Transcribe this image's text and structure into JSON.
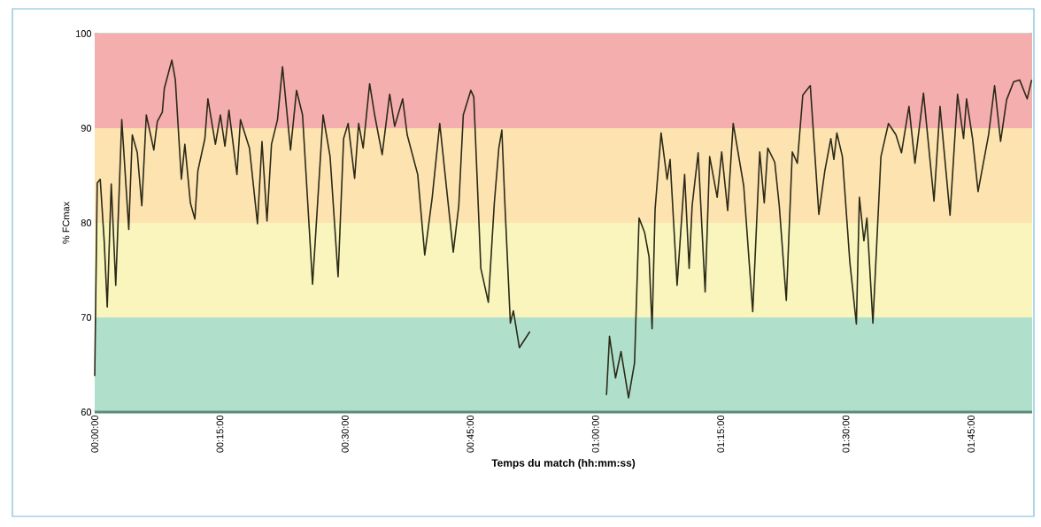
{
  "chart_data": {
    "type": "line",
    "xlabel": "Temps du match (hh:mm:ss)",
    "ylabel": "% FCmax",
    "xlim": [
      0,
      1.872
    ],
    "ylim": [
      60,
      100
    ],
    "xticks": [
      {
        "value": 0,
        "label": "00:00:00"
      },
      {
        "value": 0.25,
        "label": "00:15:00"
      },
      {
        "value": 0.5,
        "label": "00:30:00"
      },
      {
        "value": 0.75,
        "label": "00:45:00"
      },
      {
        "value": 1,
        "label": "01:00:00"
      },
      {
        "value": 1.25,
        "label": "01:15:00"
      },
      {
        "value": 1.5,
        "label": "01:30:00"
      },
      {
        "value": 1.75,
        "label": "01:45:00"
      }
    ],
    "yticks": [
      60,
      70,
      80,
      90,
      100
    ],
    "grid": "y",
    "marker": "none",
    "line_style": "solid",
    "bands": [
      {
        "axis": "y",
        "from": 60,
        "to": 70,
        "color": "#b0e0cc"
      },
      {
        "axis": "y",
        "from": 70,
        "to": 80,
        "color": "#f9f5bd"
      },
      {
        "axis": "y",
        "from": 80,
        "to": 90,
        "color": "#fde3b0"
      },
      {
        "axis": "y",
        "from": 90,
        "to": 100,
        "color": "#f5aeae"
      }
    ],
    "series": [
      {
        "color": "#2b2a18",
        "x": [
          0,
          0.005,
          0.011,
          0.019,
          0.025,
          0.033,
          0.042,
          0.054,
          0.068,
          0.075,
          0.085,
          0.094,
          0.103,
          0.118,
          0.125,
          0.135,
          0.139,
          0.154,
          0.161,
          0.173,
          0.18,
          0.191,
          0.2,
          0.206,
          0.22,
          0.226,
          0.241,
          0.251,
          0.26,
          0.268,
          0.284,
          0.291,
          0.309,
          0.325,
          0.334,
          0.344,
          0.353,
          0.365,
          0.375,
          0.391,
          0.403,
          0.415,
          0.435,
          0.456,
          0.47,
          0.486,
          0.497,
          0.506,
          0.519,
          0.527,
          0.536,
          0.549,
          0.559,
          0.574,
          0.589,
          0.599,
          0.615,
          0.624,
          0.645,
          0.659,
          0.674,
          0.689,
          0.716,
          0.727,
          0.736,
          0.751,
          0.757,
          0.771,
          0.786,
          0.798,
          0.807,
          0.813,
          0.819,
          0.83,
          0.836,
          0.848,
          0.869,
          0.95,
          1.022,
          1.028,
          1.04,
          1.051,
          1.066,
          1.078,
          1.087,
          1.098,
          1.107,
          1.113,
          1.119,
          1.131,
          1.143,
          1.149,
          1.163,
          1.178,
          1.187,
          1.193,
          1.205,
          1.219,
          1.228,
          1.243,
          1.252,
          1.264,
          1.275,
          1.296,
          1.314,
          1.328,
          1.337,
          1.344,
          1.358,
          1.367,
          1.381,
          1.393,
          1.403,
          1.414,
          1.429,
          1.446,
          1.458,
          1.47,
          1.476,
          1.482,
          1.493,
          1.508,
          1.521,
          1.527,
          1.536,
          1.542,
          1.554,
          1.57,
          1.585,
          1.6,
          1.611,
          1.626,
          1.638,
          1.655,
          1.676,
          1.688,
          1.708,
          1.723,
          1.735,
          1.741,
          1.753,
          1.764,
          1.785,
          1.797,
          1.809,
          1.821,
          1.835,
          1.847,
          1.862,
          1.871
        ],
        "values": [
          63.8,
          84.2,
          84.6,
          78.0,
          71.1,
          84.1,
          73.4,
          90.9,
          79.3,
          89.3,
          87.4,
          81.8,
          91.4,
          87.7,
          90.7,
          91.7,
          94.2,
          97.2,
          95.1,
          84.6,
          88.3,
          82.1,
          80.4,
          85.5,
          88.9,
          93.1,
          88.3,
          91.4,
          88.1,
          91.9,
          85.1,
          90.9,
          87.9,
          79.9,
          88.6,
          80.2,
          88.3,
          90.9,
          96.5,
          87.7,
          94.0,
          91.4,
          73.5,
          91.4,
          87.0,
          74.3,
          88.9,
          90.5,
          84.7,
          90.5,
          87.9,
          94.7,
          91.4,
          87.2,
          93.6,
          90.2,
          93.1,
          89.3,
          85.1,
          76.6,
          82.7,
          90.5,
          76.9,
          81.8,
          91.4,
          94.0,
          93.3,
          75.2,
          71.6,
          82.1,
          87.9,
          89.8,
          82.1,
          69.4,
          70.7,
          66.8,
          68.5,
          null,
          61.8,
          68.0,
          63.6,
          66.4,
          61.5,
          65.2,
          80.5,
          79.0,
          76.4,
          68.8,
          81.4,
          89.5,
          84.6,
          86.7,
          73.4,
          85.1,
          75.2,
          81.8,
          87.4,
          72.7,
          87.0,
          82.7,
          87.5,
          81.3,
          90.5,
          83.9,
          70.6,
          87.5,
          82.1,
          87.9,
          86.4,
          81.8,
          71.8,
          87.5,
          86.3,
          93.5,
          94.5,
          80.9,
          85.5,
          88.9,
          86.7,
          89.5,
          87.0,
          75.8,
          69.3,
          82.7,
          78.1,
          80.5,
          69.4,
          87.0,
          90.5,
          89.3,
          87.4,
          92.3,
          86.3,
          93.7,
          82.3,
          92.3,
          80.8,
          93.6,
          88.9,
          93.1,
          88.9,
          83.3,
          89.3,
          94.5,
          88.6,
          93.0,
          94.9,
          95.1,
          93.1,
          95.1
        ]
      }
    ]
  }
}
